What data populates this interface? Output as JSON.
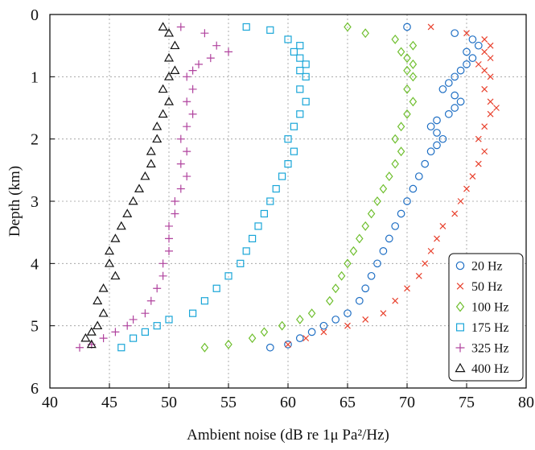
{
  "chart_data": {
    "type": "scatter",
    "title": "",
    "xlabel": "Ambient noise (dB re 1μ Pa²/Hz)",
    "ylabel": "Depth (km)",
    "xlim": [
      40,
      80
    ],
    "ylim": [
      0,
      6
    ],
    "y_inverted": true,
    "grid": true,
    "legend_position": "bottom-right",
    "xticks": [
      "40",
      "45",
      "50",
      "55",
      "60",
      "65",
      "70",
      "75",
      "80"
    ],
    "yticks": [
      "0",
      "1",
      "2",
      "3",
      "4",
      "5",
      "6"
    ],
    "series": [
      {
        "name": "20 Hz",
        "marker": "circle",
        "color": "#1f6fc4",
        "points": [
          [
            70,
            0.2
          ],
          [
            74,
            0.3
          ],
          [
            75.5,
            0.4
          ],
          [
            76,
            0.5
          ],
          [
            75,
            0.6
          ],
          [
            75.5,
            0.7
          ],
          [
            75,
            0.8
          ],
          [
            74.5,
            0.9
          ],
          [
            74,
            1.0
          ],
          [
            73.5,
            1.1
          ],
          [
            73,
            1.2
          ],
          [
            74,
            1.3
          ],
          [
            74.5,
            1.4
          ],
          [
            74,
            1.5
          ],
          [
            73.5,
            1.6
          ],
          [
            72.5,
            1.7
          ],
          [
            72,
            1.8
          ],
          [
            72.5,
            1.9
          ],
          [
            73,
            2.0
          ],
          [
            72.5,
            2.1
          ],
          [
            72,
            2.2
          ],
          [
            71.5,
            2.4
          ],
          [
            71,
            2.6
          ],
          [
            70.5,
            2.8
          ],
          [
            70,
            3.0
          ],
          [
            69.5,
            3.2
          ],
          [
            69,
            3.4
          ],
          [
            68.5,
            3.6
          ],
          [
            68,
            3.8
          ],
          [
            67.5,
            4.0
          ],
          [
            67,
            4.2
          ],
          [
            66.5,
            4.4
          ],
          [
            66,
            4.6
          ],
          [
            65,
            4.8
          ],
          [
            64,
            4.9
          ],
          [
            63,
            5.0
          ],
          [
            62,
            5.1
          ],
          [
            61,
            5.2
          ],
          [
            60,
            5.3
          ],
          [
            58.5,
            5.35
          ]
        ]
      },
      {
        "name": "50 Hz",
        "marker": "x",
        "color": "#e8412d",
        "points": [
          [
            72,
            0.2
          ],
          [
            75,
            0.3
          ],
          [
            76.5,
            0.4
          ],
          [
            77,
            0.5
          ],
          [
            76.5,
            0.6
          ],
          [
            77,
            0.7
          ],
          [
            76,
            0.8
          ],
          [
            76.5,
            0.9
          ],
          [
            77,
            1.0
          ],
          [
            76.5,
            1.2
          ],
          [
            77,
            1.4
          ],
          [
            77.5,
            1.5
          ],
          [
            77,
            1.6
          ],
          [
            76.5,
            1.8
          ],
          [
            76,
            2.0
          ],
          [
            76.5,
            2.2
          ],
          [
            76,
            2.4
          ],
          [
            75.5,
            2.6
          ],
          [
            75,
            2.8
          ],
          [
            74.5,
            3.0
          ],
          [
            74,
            3.2
          ],
          [
            73,
            3.4
          ],
          [
            72.5,
            3.6
          ],
          [
            72,
            3.8
          ],
          [
            71.5,
            4.0
          ],
          [
            71,
            4.2
          ],
          [
            70,
            4.4
          ],
          [
            69,
            4.6
          ],
          [
            68,
            4.8
          ],
          [
            66.5,
            4.9
          ],
          [
            65,
            5.0
          ],
          [
            63,
            5.1
          ],
          [
            61.5,
            5.2
          ],
          [
            60,
            5.3
          ]
        ]
      },
      {
        "name": "100 Hz",
        "marker": "diamond",
        "color": "#6fbf2e",
        "points": [
          [
            65,
            0.2
          ],
          [
            66.5,
            0.3
          ],
          [
            69,
            0.4
          ],
          [
            70.5,
            0.5
          ],
          [
            69.5,
            0.6
          ],
          [
            70,
            0.7
          ],
          [
            70.5,
            0.8
          ],
          [
            70,
            0.9
          ],
          [
            70.5,
            1.0
          ],
          [
            70,
            1.2
          ],
          [
            70.5,
            1.4
          ],
          [
            70,
            1.6
          ],
          [
            69.5,
            1.8
          ],
          [
            69,
            2.0
          ],
          [
            69.5,
            2.2
          ],
          [
            69,
            2.4
          ],
          [
            68.5,
            2.6
          ],
          [
            68,
            2.8
          ],
          [
            67.5,
            3.0
          ],
          [
            67,
            3.2
          ],
          [
            66.5,
            3.4
          ],
          [
            66,
            3.6
          ],
          [
            65.5,
            3.8
          ],
          [
            65,
            4.0
          ],
          [
            64.5,
            4.2
          ],
          [
            64,
            4.4
          ],
          [
            63.5,
            4.6
          ],
          [
            62,
            4.8
          ],
          [
            61,
            4.9
          ],
          [
            59.5,
            5.0
          ],
          [
            58,
            5.1
          ],
          [
            57,
            5.2
          ],
          [
            55,
            5.3
          ],
          [
            53,
            5.35
          ]
        ]
      },
      {
        "name": "175 Hz",
        "marker": "square",
        "color": "#1aa6d8",
        "points": [
          [
            56.5,
            0.2
          ],
          [
            58.5,
            0.25
          ],
          [
            60,
            0.4
          ],
          [
            61,
            0.5
          ],
          [
            60.5,
            0.6
          ],
          [
            61,
            0.7
          ],
          [
            61.5,
            0.8
          ],
          [
            61,
            0.9
          ],
          [
            61.5,
            1.0
          ],
          [
            61,
            1.2
          ],
          [
            61.5,
            1.4
          ],
          [
            61,
            1.6
          ],
          [
            60.5,
            1.8
          ],
          [
            60,
            2.0
          ],
          [
            60.5,
            2.2
          ],
          [
            60,
            2.4
          ],
          [
            59.5,
            2.6
          ],
          [
            59,
            2.8
          ],
          [
            58.5,
            3.0
          ],
          [
            58,
            3.2
          ],
          [
            57.5,
            3.4
          ],
          [
            57,
            3.6
          ],
          [
            56.5,
            3.8
          ],
          [
            56,
            4.0
          ],
          [
            55,
            4.2
          ],
          [
            54,
            4.4
          ],
          [
            53,
            4.6
          ],
          [
            52,
            4.8
          ],
          [
            50,
            4.9
          ],
          [
            49,
            5.0
          ],
          [
            48,
            5.1
          ],
          [
            47,
            5.2
          ],
          [
            46,
            5.35
          ]
        ]
      },
      {
        "name": "325 Hz",
        "marker": "plus",
        "color": "#b0439e",
        "points": [
          [
            51,
            0.2
          ],
          [
            53,
            0.3
          ],
          [
            54,
            0.5
          ],
          [
            55,
            0.6
          ],
          [
            53.5,
            0.7
          ],
          [
            52.5,
            0.8
          ],
          [
            52,
            0.9
          ],
          [
            51.5,
            1.0
          ],
          [
            52,
            1.2
          ],
          [
            51.5,
            1.4
          ],
          [
            52,
            1.6
          ],
          [
            51.5,
            1.8
          ],
          [
            51,
            2.0
          ],
          [
            51.5,
            2.2
          ],
          [
            51,
            2.4
          ],
          [
            51.5,
            2.6
          ],
          [
            51,
            2.8
          ],
          [
            50.5,
            3.0
          ],
          [
            50.5,
            3.2
          ],
          [
            50,
            3.4
          ],
          [
            50,
            3.6
          ],
          [
            50,
            3.8
          ],
          [
            49.5,
            4.0
          ],
          [
            49.5,
            4.2
          ],
          [
            49,
            4.4
          ],
          [
            48.5,
            4.6
          ],
          [
            48,
            4.8
          ],
          [
            47,
            4.9
          ],
          [
            46.5,
            5.0
          ],
          [
            45.5,
            5.1
          ],
          [
            44.5,
            5.2
          ],
          [
            43.5,
            5.3
          ],
          [
            42.5,
            5.35
          ]
        ]
      },
      {
        "name": "400 Hz",
        "marker": "triangle",
        "color": "#111111",
        "points": [
          [
            49.5,
            0.2
          ],
          [
            50,
            0.3
          ],
          [
            50.5,
            0.5
          ],
          [
            50,
            0.7
          ],
          [
            50.5,
            0.9
          ],
          [
            50,
            1.0
          ],
          [
            49.5,
            1.2
          ],
          [
            50,
            1.4
          ],
          [
            49.5,
            1.6
          ],
          [
            49,
            1.8
          ],
          [
            49,
            2.0
          ],
          [
            48.5,
            2.2
          ],
          [
            48.5,
            2.4
          ],
          [
            48,
            2.6
          ],
          [
            47.5,
            2.8
          ],
          [
            47,
            3.0
          ],
          [
            46.5,
            3.2
          ],
          [
            46,
            3.4
          ],
          [
            45.5,
            3.6
          ],
          [
            45,
            3.8
          ],
          [
            45,
            4.0
          ],
          [
            45.5,
            4.2
          ],
          [
            44.5,
            4.4
          ],
          [
            44,
            4.6
          ],
          [
            44.5,
            4.8
          ],
          [
            44,
            5.0
          ],
          [
            43.5,
            5.1
          ],
          [
            43,
            5.2
          ],
          [
            43.5,
            5.3
          ]
        ]
      }
    ]
  }
}
